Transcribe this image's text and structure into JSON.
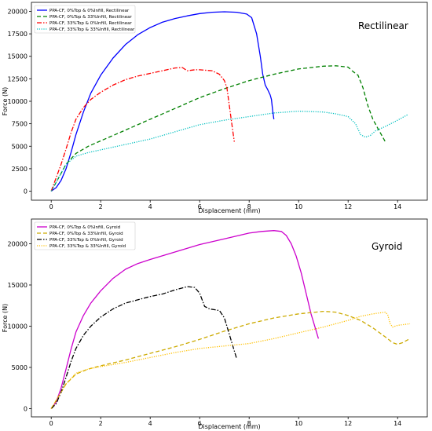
{
  "chart_data": [
    {
      "type": "line",
      "title": "",
      "annotation": "Rectilinear",
      "xlabel": "Displacement (mm)",
      "ylabel": "Force (N)",
      "xlim": [
        -0.8,
        15.2
      ],
      "ylim": [
        -1000,
        21000
      ],
      "xticks": [
        0,
        2,
        4,
        6,
        8,
        10,
        12,
        14
      ],
      "yticks": [
        0,
        2500,
        5000,
        7500,
        10000,
        12500,
        15000,
        17500,
        20000
      ],
      "grid": false,
      "legend_position": "top-left",
      "series": [
        {
          "name": "PPA-CF, 0%Top & 0%Infill, Rectilinear",
          "color": "#0000ff",
          "dash": "solid",
          "x": [
            0,
            0.2,
            0.4,
            0.6,
            0.8,
            1.0,
            1.3,
            1.6,
            2.0,
            2.5,
            3.0,
            3.5,
            4.0,
            4.5,
            5.0,
            5.5,
            6.0,
            6.5,
            7.0,
            7.5,
            7.9,
            8.1,
            8.3,
            8.45,
            8.55,
            8.65,
            8.75,
            8.85,
            8.9,
            8.95,
            9.0
          ],
          "y": [
            0,
            400,
            1200,
            2500,
            4300,
            6300,
            8800,
            10900,
            12900,
            14800,
            16300,
            17400,
            18200,
            18800,
            19200,
            19500,
            19750,
            19900,
            19950,
            19900,
            19700,
            19300,
            17500,
            15000,
            13000,
            11800,
            11300,
            10700,
            10200,
            9000,
            8000
          ]
        },
        {
          "name": "PPA-CF, 0%Top & 33%Infill, Rectilinear",
          "color": "#008000",
          "dash": "dashed",
          "x": [
            0,
            0.3,
            0.6,
            1.0,
            1.5,
            2.0,
            3.0,
            4.0,
            5.0,
            6.0,
            7.0,
            8.0,
            9.0,
            10.0,
            11.0,
            11.5,
            12.0,
            12.2,
            12.4,
            12.6,
            12.8,
            13.0,
            13.2,
            13.5
          ],
          "y": [
            0,
            1500,
            3000,
            4200,
            5000,
            5600,
            6800,
            8000,
            9200,
            10400,
            11400,
            12300,
            13000,
            13600,
            13900,
            13950,
            13800,
            13300,
            12900,
            11500,
            9500,
            8000,
            7000,
            5500
          ]
        },
        {
          "name": "PPA-CF, 33%Top & 0%Infill, Rectilinear",
          "color": "#ff0000",
          "dash": "dashdot",
          "x": [
            0,
            0.2,
            0.4,
            0.6,
            0.8,
            1.0,
            1.3,
            1.6,
            2.0,
            2.5,
            3.0,
            3.5,
            4.0,
            4.5,
            5.0,
            5.3,
            5.5,
            5.8,
            6.0,
            6.5,
            6.8,
            7.0,
            7.1,
            7.2,
            7.3,
            7.35,
            7.4
          ],
          "y": [
            0,
            1500,
            3000,
            4700,
            6500,
            8000,
            9300,
            10200,
            11000,
            11800,
            12400,
            12800,
            13100,
            13400,
            13700,
            13750,
            13400,
            13500,
            13500,
            13400,
            13000,
            12300,
            11500,
            9500,
            7500,
            6500,
            5500
          ]
        },
        {
          "name": "PPA-CF, 33%Top & 33%Infill, Rectilinear",
          "color": "#00c0c0",
          "dash": "dotted",
          "x": [
            0,
            0.3,
            0.6,
            1.0,
            1.5,
            2.0,
            3.0,
            4.0,
            5.0,
            6.0,
            7.0,
            8.0,
            9.0,
            10.0,
            11.0,
            11.5,
            12.0,
            12.3,
            12.5,
            12.7,
            12.9,
            13.1,
            13.5,
            14.0,
            14.4
          ],
          "y": [
            0,
            1500,
            3000,
            3900,
            4300,
            4600,
            5200,
            5800,
            6600,
            7400,
            7900,
            8300,
            8700,
            8900,
            8800,
            8600,
            8300,
            7500,
            6300,
            6000,
            6200,
            6700,
            7200,
            7900,
            8500
          ]
        }
      ]
    },
    {
      "type": "line",
      "title": "",
      "annotation": "Gyroid",
      "xlabel": "Displacement (mm)",
      "ylabel": "Force (N)",
      "xlim": [
        -0.8,
        15.2
      ],
      "ylim": [
        -1000,
        23000
      ],
      "xticks": [
        0,
        2,
        4,
        6,
        8,
        10,
        12,
        14
      ],
      "yticks": [
        0,
        5000,
        10000,
        15000,
        20000
      ],
      "grid": false,
      "legend_position": "top-left",
      "series": [
        {
          "name": "PPA-CF, 0%Top & 0%Infill, Gyroid",
          "color": "#cc00cc",
          "dash": "solid",
          "x": [
            0,
            0.2,
            0.4,
            0.6,
            0.8,
            1.0,
            1.3,
            1.6,
            2.0,
            2.5,
            3.0,
            3.5,
            4.0,
            5.0,
            6.0,
            7.0,
            8.0,
            8.5,
            9.0,
            9.3,
            9.5,
            9.7,
            9.9,
            10.1,
            10.3,
            10.5,
            10.7,
            10.8
          ],
          "y": [
            0,
            800,
            2500,
            4800,
            7200,
            9300,
            11300,
            12800,
            14300,
            15800,
            16900,
            17600,
            18100,
            19000,
            19900,
            20600,
            21300,
            21500,
            21600,
            21500,
            21000,
            20000,
            18500,
            16500,
            14000,
            11500,
            9500,
            8500
          ]
        },
        {
          "name": "PPA-CF, 0%Top & 33%Infill, Gyroid",
          "color": "#ccaa00",
          "dash": "dashed",
          "x": [
            0,
            0.3,
            0.6,
            1.0,
            1.5,
            2.0,
            3.0,
            4.0,
            5.0,
            6.0,
            7.0,
            8.0,
            9.0,
            10.0,
            11.0,
            11.5,
            12.0,
            12.5,
            13.0,
            13.5,
            13.8,
            14.0,
            14.2,
            14.5
          ],
          "y": [
            0,
            1500,
            3000,
            4200,
            4800,
            5200,
            5900,
            6700,
            7500,
            8400,
            9400,
            10300,
            11000,
            11500,
            11800,
            11700,
            11300,
            10700,
            9800,
            8700,
            8000,
            7800,
            8000,
            8500
          ]
        },
        {
          "name": "PPA-CF, 33%Top & 0%Infill, Gyroid",
          "color": "#000000",
          "dash": "dashdot",
          "x": [
            0,
            0.2,
            0.4,
            0.6,
            0.8,
            1.0,
            1.3,
            1.6,
            2.0,
            2.5,
            3.0,
            3.5,
            4.0,
            4.5,
            5.0,
            5.5,
            5.8,
            6.0,
            6.2,
            6.4,
            6.6,
            6.8,
            7.0,
            7.2,
            7.4,
            7.5
          ],
          "y": [
            0,
            600,
            2000,
            3800,
            5700,
            7300,
            8900,
            10000,
            11100,
            12100,
            12800,
            13200,
            13600,
            13900,
            14400,
            14800,
            14700,
            14000,
            12400,
            12100,
            12000,
            11900,
            11000,
            9000,
            7000,
            6000
          ]
        },
        {
          "name": "PPA-CF, 33%Top & 33%Infill, Gyroid",
          "color": "#ffc000",
          "dash": "dotted",
          "x": [
            0,
            0.3,
            0.6,
            1.0,
            1.5,
            2.0,
            3.0,
            4.0,
            5.0,
            6.0,
            7.0,
            8.0,
            9.0,
            10.0,
            11.0,
            12.0,
            12.5,
            13.0,
            13.5,
            13.6,
            13.7,
            13.8,
            14.0,
            14.5
          ],
          "y": [
            0,
            1500,
            3000,
            4300,
            4800,
            5100,
            5600,
            6200,
            6800,
            7300,
            7600,
            7900,
            8500,
            9200,
            9900,
            10700,
            11200,
            11500,
            11700,
            11400,
            10300,
            9900,
            10100,
            10300
          ]
        }
      ]
    }
  ]
}
